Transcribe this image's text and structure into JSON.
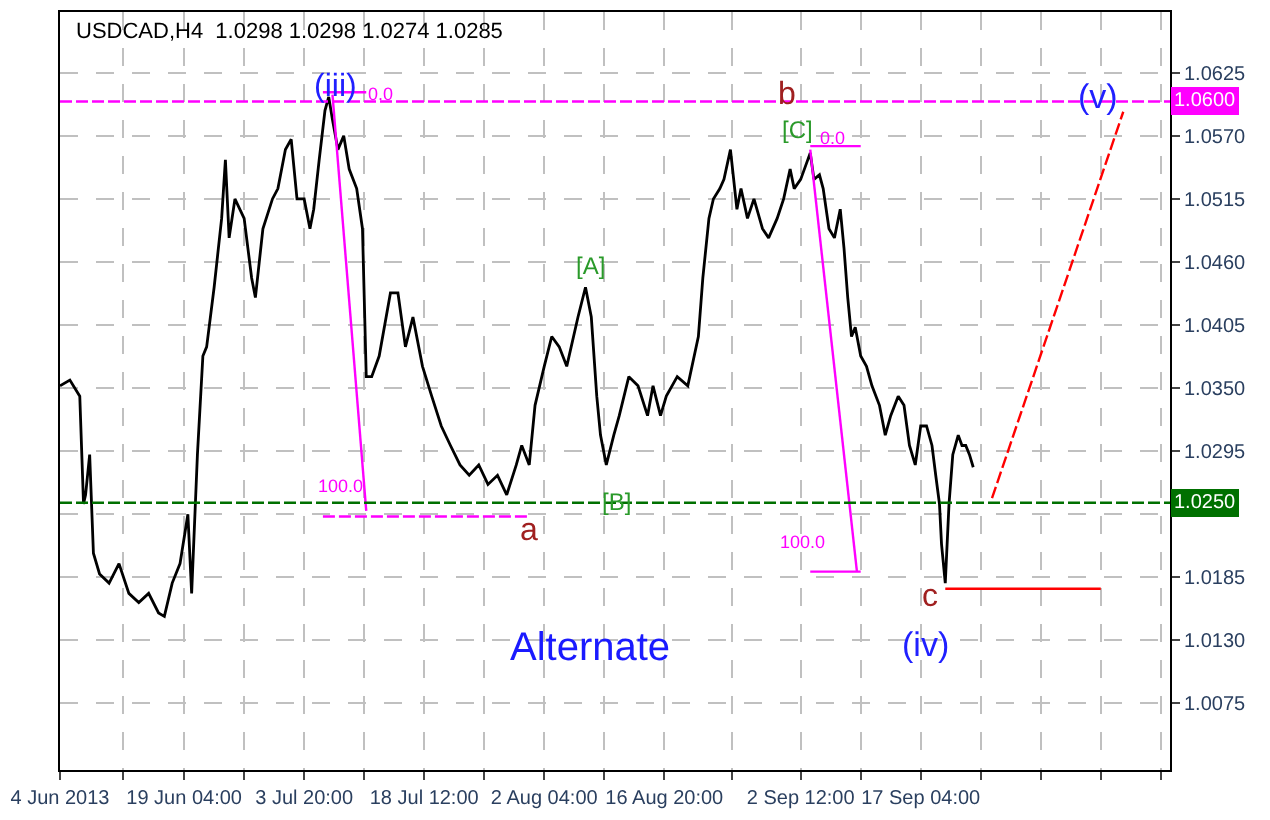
{
  "chart_data": {
    "type": "line",
    "title": "USDCAD,H4  1.0298 1.0298 1.0274 1.0285",
    "xlim": [
      "2013-06-04T00:00",
      "2013-10-17T15:00"
    ],
    "xticks": [
      {
        "value": "2013-06-04T00:00",
        "label": "4 Jun 2013"
      },
      {
        "value": "2013-06-11T17:00",
        "label": null
      },
      {
        "value": "2013-06-19T04:00",
        "label": "19 Jun 04:00"
      },
      {
        "value": "2013-06-26T12:00",
        "label": null
      },
      {
        "value": "2013-07-03T20:00",
        "label": "3 Jul 20:00"
      },
      {
        "value": "2013-07-11T04:00",
        "label": null
      },
      {
        "value": "2013-07-18T12:00",
        "label": "18 Jul 12:00"
      },
      {
        "value": "2013-07-25T20:00",
        "label": null
      },
      {
        "value": "2013-08-02T04:00",
        "label": "2 Aug 04:00"
      },
      {
        "value": "2013-08-09T12:00",
        "label": null
      },
      {
        "value": "2013-08-16T20:00",
        "label": "16 Aug 20:00"
      },
      {
        "value": "2013-08-25T04:00",
        "label": null
      },
      {
        "value": "2013-09-02T12:00",
        "label": "2 Sep 12:00"
      },
      {
        "value": "2013-09-09T20:00",
        "label": null
      },
      {
        "value": "2013-09-17T04:00",
        "label": "17 Sep 04:00"
      },
      {
        "value": "2013-09-24T12:00",
        "label": null
      },
      {
        "value": "2013-10-01T20:00",
        "label": null
      },
      {
        "value": "2013-10-09T04:00",
        "label": null
      },
      {
        "value": "2013-10-16T12:00",
        "label": null
      }
    ],
    "ylim": [
      1.0017,
      1.0678
    ],
    "yticks": [
      {
        "value": 1.0075,
        "label": "1.0075"
      },
      {
        "value": 1.013,
        "label": "1.0130"
      },
      {
        "value": 1.0185,
        "label": "1.0185"
      },
      {
        "value": 1.024,
        "label": null
      },
      {
        "value": 1.0295,
        "label": "1.0295"
      },
      {
        "value": 1.035,
        "label": "1.0350"
      },
      {
        "value": 1.0405,
        "label": "1.0405"
      },
      {
        "value": 1.046,
        "label": "1.0460"
      },
      {
        "value": 1.0515,
        "label": "1.0515"
      },
      {
        "value": 1.057,
        "label": "1.0570"
      },
      {
        "value": 1.0625,
        "label": "1.0625"
      }
    ],
    "grid": true,
    "series": [
      {
        "color": "#000000",
        "x": [
          "2013-06-04T00:00",
          "2013-06-05T05:00",
          "2013-06-06T10:00",
          "2013-06-06T21:00",
          "2013-06-07T03:00",
          "2013-06-07T15:00",
          "2013-06-08T02:00",
          "2013-06-08T20:00",
          "2013-06-10T00:00",
          "2013-06-11T05:00",
          "2013-06-12T10:00",
          "2013-06-13T15:00",
          "2013-06-14T20:00",
          "2013-06-16T01:00",
          "2013-06-16T18:00",
          "2013-06-17T17:00",
          "2013-06-18T16:00",
          "2013-06-19T15:00",
          "2013-06-20T02:00",
          "2013-06-20T19:00",
          "2013-06-21T11:00",
          "2013-06-21T22:00",
          "2013-06-22T20:00",
          "2013-06-23T18:00",
          "2013-06-24T05:00",
          "2013-06-24T16:00",
          "2013-06-25T09:00",
          "2013-06-26T12:00",
          "2013-06-27T10:00",
          "2013-06-27T21:00",
          "2013-06-28T19:00",
          "2013-06-29T23:00",
          "2013-06-30T15:00",
          "2013-07-01T13:00",
          "2013-07-02T06:00",
          "2013-07-02T23:00",
          "2013-07-03T20:00",
          "2013-07-04T13:00",
          "2013-07-05T00:00",
          "2013-07-05T16:00",
          "2013-07-06T09:00",
          "2013-07-06T20:00",
          "2013-07-07T07:00",
          "2013-07-07T23:00",
          "2013-07-08T16:00",
          "2013-07-09T08:00",
          "2013-07-10T06:00",
          "2013-07-10T23:00",
          "2013-07-11T10:00",
          "2013-07-12T02:00",
          "2013-07-13T00:00",
          "2013-07-14T09:00",
          "2013-07-15T07:00",
          "2013-07-16T05:00",
          "2013-07-17T03:00",
          "2013-07-18T07:00",
          "2013-07-19T10:00",
          "2013-07-20T14:00",
          "2013-07-21T17:00",
          "2013-07-22T21:00",
          "2013-07-24T00:00",
          "2013-07-25T04:00",
          "2013-07-26T07:00",
          "2013-07-27T11:00",
          "2013-07-28T14:00",
          "2013-07-29T18:00",
          "2013-07-30T10:00",
          "2013-07-31T08:00",
          "2013-08-01T01:00",
          "2013-08-02T04:00",
          "2013-08-03T02:00",
          "2013-08-04T00:00",
          "2013-08-04T22:00",
          "2013-08-06T07:00",
          "2013-08-07T05:00",
          "2013-08-07T22:00",
          "2013-08-08T14:00",
          "2013-08-09T01:00",
          "2013-08-09T18:00",
          "2013-08-10T16:00",
          "2013-08-11T08:00",
          "2013-08-12T12:00",
          "2013-08-13T15:00",
          "2013-08-14T19:00",
          "2013-08-15T11:00",
          "2013-08-16T09:00",
          "2013-08-17T02:00",
          "2013-08-18T10:00",
          "2013-08-19T17:00",
          "2013-08-21T00:00",
          "2013-08-21T13:00",
          "2013-08-22T07:00",
          "2013-08-22T20:00",
          "2013-08-23T15:00",
          "2013-08-24T03:00",
          "2013-08-24T22:00",
          "2013-08-25T17:00",
          "2013-08-26T05:00",
          "2013-08-27T00:00",
          "2013-08-27T19:00",
          "2013-08-28T20:00",
          "2013-08-29T14:00",
          "2013-08-30T15:00",
          "2013-08-31T10:00",
          "2013-09-01T05:00",
          "2013-09-01T17:00",
          "2013-09-02T12:00",
          "2013-09-03T05:00",
          "2013-09-03T16:00",
          "2013-09-04T03:00",
          "2013-09-04T19:00",
          "2013-09-05T06:00",
          "2013-09-05T23:00",
          "2013-09-06T15:00",
          "2013-09-07T08:00",
          "2013-09-07T19:00",
          "2013-09-08T06:00",
          "2013-09-08T17:00",
          "2013-09-09T04:00",
          "2013-09-09T20:00",
          "2013-09-10T13:00",
          "2013-09-11T05:00",
          "2013-09-12T03:00",
          "2013-09-12T20:00",
          "2013-09-13T12:00",
          "2013-09-14T10:00",
          "2013-09-15T03:00",
          "2013-09-15T19:00",
          "2013-09-16T12:00",
          "2013-09-17T04:00",
          "2013-09-17T21:00",
          "2013-09-18T13:00",
          "2013-09-19T00:00",
          "2013-09-19T11:00",
          "2013-09-19T17:00",
          "2013-09-20T04:00",
          "2013-09-20T15:00",
          "2013-09-21T02:00",
          "2013-09-21T18:00",
          "2013-09-22T05:00",
          "2013-09-22T16:00",
          "2013-09-23T03:00",
          "2013-09-23T14:00"
        ],
        "values": [
          1.0352,
          1.0357,
          1.0343,
          1.0249,
          1.0257,
          1.0292,
          1.0206,
          1.0188,
          1.018,
          1.0197,
          1.0171,
          1.0163,
          1.0171,
          1.0154,
          1.0151,
          1.018,
          1.0197,
          1.024,
          1.0171,
          1.0292,
          1.0378,
          1.0386,
          1.0438,
          1.0498,
          1.0549,
          1.0481,
          1.0515,
          1.0498,
          1.0446,
          1.0429,
          1.0489,
          1.0515,
          1.0524,
          1.0558,
          1.0567,
          1.0515,
          1.0515,
          1.0489,
          1.0506,
          1.0549,
          1.0592,
          1.0604,
          1.0584,
          1.0558,
          1.057,
          1.0541,
          1.0524,
          1.0489,
          1.036,
          1.036,
          1.0378,
          1.0433,
          1.0433,
          1.0386,
          1.0412,
          1.0369,
          1.0343,
          1.0317,
          1.03,
          1.0283,
          1.0274,
          1.0283,
          1.0266,
          1.0274,
          1.0257,
          1.0283,
          1.03,
          1.0283,
          1.0335,
          1.0369,
          1.0395,
          1.0386,
          1.0369,
          1.0412,
          1.0438,
          1.0412,
          1.0343,
          1.0309,
          1.0283,
          1.0309,
          1.0326,
          1.036,
          1.0352,
          1.0326,
          1.0352,
          1.0326,
          1.0343,
          1.036,
          1.0352,
          1.0395,
          1.0446,
          1.0498,
          1.0515,
          1.0524,
          1.0532,
          1.0558,
          1.0506,
          1.0524,
          1.0498,
          1.0515,
          1.0489,
          1.0481,
          1.0498,
          1.0515,
          1.0541,
          1.0524,
          1.0532,
          1.0546,
          1.0555,
          1.0532,
          1.0536,
          1.0524,
          1.0489,
          1.0481,
          1.0506,
          1.0472,
          1.0429,
          1.0395,
          1.0403,
          1.0378,
          1.0369,
          1.0352,
          1.0335,
          1.0309,
          1.0326,
          1.0343,
          1.0335,
          1.03,
          1.0283,
          1.0317,
          1.0317,
          1.03,
          1.0274,
          1.0249,
          1.0214,
          1.018,
          1.0249,
          1.0292,
          1.0309,
          1.03,
          1.03,
          1.0292,
          1.0281
        ]
      },
      {
        "color": "#ff00ff",
        "x": [
          "2013-07-07T07:00",
          "2013-07-11T10:00"
        ],
        "values": [
          1.0606,
          1.0243
        ]
      },
      {
        "color": "#ff00ff",
        "x": [
          "2013-07-06T03:00",
          "2013-07-11T10:00"
        ],
        "values": [
          1.0608,
          1.0608
        ]
      },
      {
        "color": "#ff00ff",
        "x": [
          "2013-07-06T03:00",
          "2013-07-31T08:00"
        ],
        "values": [
          1.0238,
          1.0238
        ],
        "line_style": "dashed"
      },
      {
        "color": "#ff00ff",
        "x": [
          "2013-09-03T16:00",
          "2013-09-09T09:00"
        ],
        "values": [
          1.0558,
          1.019
        ]
      },
      {
        "color": "#ff00ff",
        "x": [
          "2013-09-03T16:00",
          "2013-09-09T20:00"
        ],
        "values": [
          1.0561,
          1.0561
        ]
      },
      {
        "color": "#ff00ff",
        "x": [
          "2013-09-03T16:00",
          "2013-09-09T20:00"
        ],
        "values": [
          1.019,
          1.019
        ]
      },
      {
        "color": "#ff0000",
        "x": [
          "2013-09-25T21:00",
          "2013-10-11T22:00"
        ],
        "values": [
          1.0254,
          1.0591
        ],
        "line_style": "dashed"
      },
      {
        "color": "#ff0000",
        "x": [
          "2013-09-20T04:00",
          "2013-10-09T04:00"
        ],
        "values": [
          1.0175,
          1.0175
        ]
      }
    ],
    "ref_lines": [
      {
        "axis": "y",
        "value": 1.06,
        "label": "1.0600",
        "color": "#ff00ff",
        "line_style": "dashed"
      },
      {
        "axis": "y",
        "value": 1.025,
        "label": "1.0250",
        "color": "#007000",
        "line_style": "dashed"
      }
    ],
    "annotations": [
      "(iii)",
      "0.0",
      "100.0",
      "[A]",
      "a",
      "[B]",
      "b",
      "[C]",
      "0.0",
      "100.0",
      "c",
      "(iv)",
      "(v)",
      "Alternate"
    ]
  }
}
